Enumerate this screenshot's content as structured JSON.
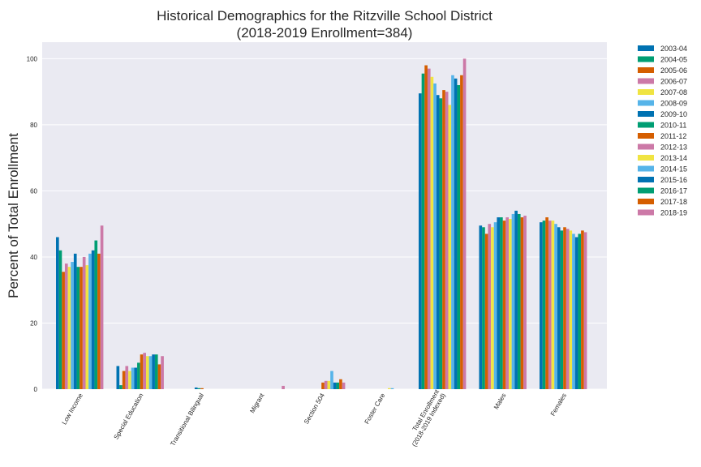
{
  "chart_data": {
    "type": "bar",
    "title": "Historical Demographics for the Ritzville School District",
    "subtitle": "(2018-2019 Enrollment=384)",
    "xlabel": "",
    "ylabel": "Percent of Total Enrollment",
    "ylim": [
      0,
      105
    ],
    "yticks": [
      0,
      20,
      40,
      60,
      80,
      100
    ],
    "grid": true,
    "legend_position": "outside-right",
    "categories": [
      "Low Income",
      "Special Education",
      "Transitional Bilingual",
      "Migrant",
      "Section 504",
      "Foster Care",
      "Total Enrollment\n(2018-2019 Indexed)",
      "Males",
      "Females"
    ],
    "series": [
      {
        "name": "2003-04",
        "color": "#0072b2",
        "values": [
          46.0,
          7.0,
          0,
          0,
          0,
          0,
          89.5,
          49.5,
          50.5
        ]
      },
      {
        "name": "2004-05",
        "color": "#009e73",
        "values": [
          42.0,
          1.2,
          0,
          0,
          0,
          0,
          95.5,
          49.0,
          51.0
        ]
      },
      {
        "name": "2005-06",
        "color": "#d55e00",
        "values": [
          35.5,
          5.5,
          0,
          0,
          0,
          0,
          98.0,
          47.0,
          52.0
        ]
      },
      {
        "name": "2006-07",
        "color": "#cc79a7",
        "values": [
          38.0,
          7.0,
          0,
          0,
          0,
          0,
          97.0,
          50.0,
          51.0
        ]
      },
      {
        "name": "2007-08",
        "color": "#f0e442",
        "values": [
          37.0,
          5.5,
          0,
          0,
          0,
          0,
          94.5,
          49.0,
          51.0
        ]
      },
      {
        "name": "2008-09",
        "color": "#56b4e9",
        "values": [
          38.5,
          6.5,
          0,
          0,
          0,
          0,
          92.5,
          50.5,
          50.0
        ]
      },
      {
        "name": "2009-10",
        "color": "#0072b2",
        "values": [
          41.0,
          6.5,
          0.5,
          0,
          0,
          0,
          89.0,
          52.0,
          49.0
        ]
      },
      {
        "name": "2010-11",
        "color": "#009e73",
        "values": [
          37.0,
          8.0,
          0.3,
          0,
          0,
          0,
          88.0,
          52.0,
          48.0
        ]
      },
      {
        "name": "2011-12",
        "color": "#d55e00",
        "values": [
          37.0,
          10.5,
          0.3,
          0,
          2.0,
          0,
          90.5,
          51.0,
          49.0
        ]
      },
      {
        "name": "2012-13",
        "color": "#cc79a7",
        "values": [
          40.0,
          11.0,
          0,
          0,
          2.5,
          0,
          90.0,
          52.0,
          48.5
        ]
      },
      {
        "name": "2013-14",
        "color": "#f0e442",
        "values": [
          37.5,
          10.0,
          0,
          0,
          2.5,
          0.3,
          86.0,
          51.5,
          48.0
        ]
      },
      {
        "name": "2014-15",
        "color": "#56b4e9",
        "values": [
          41.0,
          10.0,
          0,
          0,
          5.5,
          0.3,
          95.0,
          53.0,
          47.0
        ]
      },
      {
        "name": "2015-16",
        "color": "#0072b2",
        "values": [
          42.0,
          10.5,
          0,
          0,
          2.0,
          0,
          94.0,
          54.0,
          46.0
        ]
      },
      {
        "name": "2016-17",
        "color": "#009e73",
        "values": [
          45.0,
          10.5,
          0,
          0,
          2.0,
          0,
          92.0,
          53.0,
          47.0
        ]
      },
      {
        "name": "2017-18",
        "color": "#d55e00",
        "values": [
          41.0,
          7.5,
          0,
          0,
          3.0,
          0,
          95.0,
          52.0,
          48.0
        ]
      },
      {
        "name": "2018-19",
        "color": "#cc79a7",
        "values": [
          49.5,
          10.0,
          0,
          1.0,
          2.0,
          0,
          100.0,
          52.5,
          47.5
        ]
      }
    ]
  }
}
